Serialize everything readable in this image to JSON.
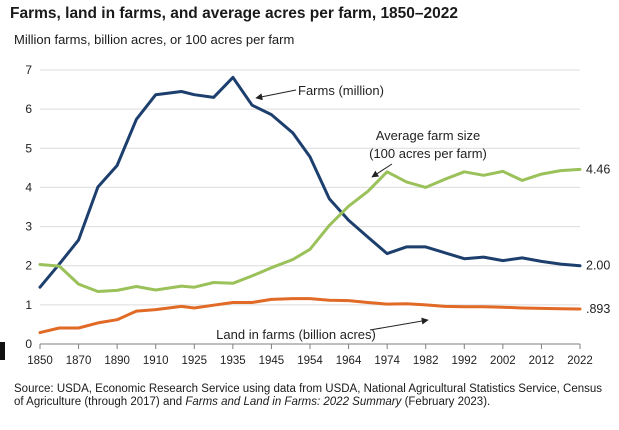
{
  "title": "Farms, land in farms, and average acres per farm, 1850–2022",
  "subtitle": "Million farms, billion acres, or 100 acres per farm",
  "source": {
    "prefix": "Source: USDA, Economic Research Service using data from USDA, National Agricultural Statistics Service, Census of Agriculture (through 2017) and ",
    "italic": "Farms and Land in Farms: 2022 Summary",
    "suffix": " (February 2023)."
  },
  "colors": {
    "farms": "#1d3f6e",
    "avg_size": "#9bc15a",
    "land": "#e06a26",
    "grid": "#dcdcdc",
    "axis": "#7f7f7f"
  },
  "chart_data": {
    "type": "line",
    "title": "Farms, land in farms, and average acres per farm, 1850–2022",
    "subtitle": "Million farms, billion acres, or 100 acres per farm",
    "xlabel": "",
    "ylabel": "",
    "xlim": [
      1850,
      2022
    ],
    "ylim": [
      0,
      7
    ],
    "grid": "horizontal",
    "x_tick_labels": [
      "1850",
      "1870",
      "1890",
      "1910",
      "1925",
      "1935",
      "1945",
      "1954",
      "1964",
      "1974",
      "1982",
      "1992",
      "2002",
      "2012",
      "2022"
    ],
    "y_ticks": [
      0,
      1,
      2,
      3,
      4,
      5,
      6,
      7
    ],
    "x": [
      1850,
      1860,
      1870,
      1880,
      1890,
      1900,
      1910,
      1920,
      1925,
      1930,
      1935,
      1940,
      1945,
      1950,
      1954,
      1959,
      1964,
      1969,
      1974,
      1978,
      1982,
      1987,
      1992,
      1997,
      2002,
      2007,
      2012,
      2017,
      2022
    ],
    "series": [
      {
        "name": "Farms (million)",
        "key": "farms",
        "values": [
          1.45,
          2.04,
          2.66,
          4.01,
          4.56,
          5.74,
          6.37,
          6.45,
          6.37,
          6.3,
          6.81,
          6.1,
          5.86,
          5.39,
          4.78,
          3.71,
          3.16,
          2.73,
          2.31,
          2.48,
          2.48,
          2.33,
          2.18,
          2.22,
          2.13,
          2.2,
          2.11,
          2.04,
          2.0
        ],
        "end_label": "2.00"
      },
      {
        "name": "Average farm size (100 acres per farm)",
        "key": "avg_size",
        "values": [
          2.03,
          1.99,
          1.53,
          1.34,
          1.37,
          1.47,
          1.38,
          1.48,
          1.45,
          1.57,
          1.55,
          1.74,
          1.95,
          2.16,
          2.42,
          3.03,
          3.52,
          3.9,
          4.4,
          4.14,
          4.0,
          4.21,
          4.4,
          4.31,
          4.41,
          4.18,
          4.34,
          4.43,
          4.46
        ],
        "end_label": "4.46"
      },
      {
        "name": "Land in farms (billion acres)",
        "key": "land",
        "values": [
          0.29,
          0.41,
          0.41,
          0.54,
          0.62,
          0.84,
          0.88,
          0.96,
          0.92,
          0.99,
          1.06,
          1.06,
          1.14,
          1.16,
          1.16,
          1.12,
          1.11,
          1.06,
          1.02,
          1.03,
          1.0,
          0.96,
          0.95,
          0.95,
          0.94,
          0.92,
          0.91,
          0.9,
          0.893
        ],
        "end_label": ".893"
      }
    ],
    "annotations": [
      {
        "key": "farms",
        "text": [
          "Farms (million)"
        ]
      },
      {
        "key": "avg_size",
        "text": [
          "Average farm size",
          "(100 acres per farm)"
        ]
      },
      {
        "key": "land",
        "text": [
          "Land in farms (billion acres)"
        ]
      }
    ]
  }
}
